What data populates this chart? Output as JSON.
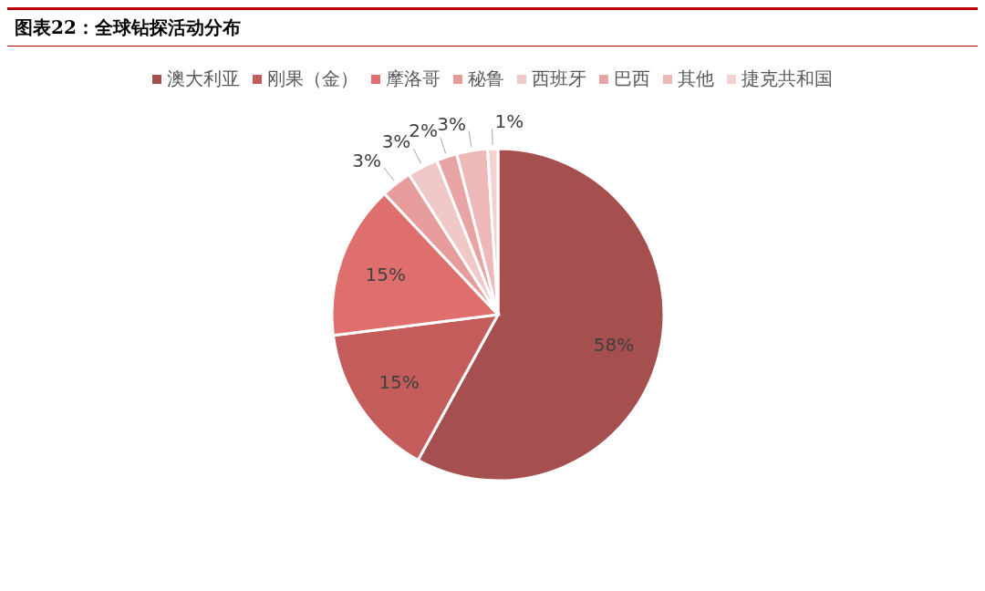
{
  "chart_data": {
    "type": "pie",
    "title": "图表22：全球钻探活动分布",
    "categories": [
      "澳大利亚",
      "刚果（金）",
      "摩洛哥",
      "秘鲁",
      "西班牙",
      "巴西",
      "其他",
      "捷克共和国"
    ],
    "values": [
      58,
      15,
      15,
      3,
      3,
      2,
      3,
      1
    ],
    "colors": [
      "#a5504f",
      "#c45c5c",
      "#df6f6d",
      "#e59c9b",
      "#f0c8c8",
      "#e8a4a5",
      "#eeb8b8",
      "#f5d0d0"
    ],
    "value_labels": [
      "58%",
      "15%",
      "15%",
      "3%",
      "3%",
      "2%",
      "3%",
      "1%"
    ],
    "legend": "top"
  }
}
